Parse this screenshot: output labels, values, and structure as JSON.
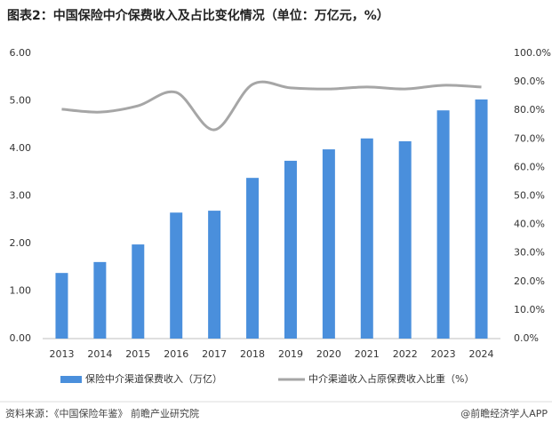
{
  "chart_data": {
    "type": "bar-line",
    "title": "图表2：中国保险中介保费收入及占比变化情况（单位：万亿元，%）",
    "categories": [
      "2013",
      "2014",
      "2015",
      "2016",
      "2017",
      "2018",
      "2019",
      "2020",
      "2021",
      "2022",
      "2023",
      "2024"
    ],
    "series": [
      {
        "name": "保险中介渠道保费收入（万亿）",
        "type": "bar",
        "color": "#4a8fdc",
        "values": [
          1.38,
          1.61,
          1.98,
          2.65,
          2.69,
          3.38,
          3.74,
          3.98,
          4.21,
          4.15,
          4.8,
          5.03
        ]
      },
      {
        "name": "中介渠道收入占原保费收入比重（%）",
        "type": "line",
        "axis": "y2",
        "color": "#a6a6a6",
        "values": [
          80.4,
          79.4,
          81.6,
          86.3,
          73.2,
          89.1,
          87.9,
          87.5,
          88.2,
          87.5,
          88.8,
          88.2
        ]
      }
    ],
    "ylim": [
      0,
      6
    ],
    "yticks": [
      {
        "value": 0,
        "label": "0.00"
      },
      {
        "value": 1,
        "label": "1.00"
      },
      {
        "value": 2,
        "label": "2.00"
      },
      {
        "value": 3,
        "label": "3.00"
      },
      {
        "value": 4,
        "label": "4.00"
      },
      {
        "value": 5,
        "label": "5.00"
      },
      {
        "value": 6,
        "label": "6.00"
      }
    ],
    "y2lim": [
      0,
      100
    ],
    "y2ticks": [
      {
        "value": 0,
        "label": "0.0%"
      },
      {
        "value": 10,
        "label": "10.0%"
      },
      {
        "value": 20,
        "label": "20.0%"
      },
      {
        "value": 30,
        "label": "30.0%"
      },
      {
        "value": 40,
        "label": "40.0%"
      },
      {
        "value": 50,
        "label": "50.0%"
      },
      {
        "value": 60,
        "label": "60.0%"
      },
      {
        "value": 70,
        "label": "70.0%"
      },
      {
        "value": 80,
        "label": "80.0%"
      },
      {
        "value": 90,
        "label": "90.0%"
      },
      {
        "value": 100,
        "label": "100.0%"
      }
    ],
    "grid": false,
    "legend": "bottom",
    "source": "资料来源：《中国保险年鉴》 前瞻产业研究院",
    "credit": "@前瞻经济学人APP"
  }
}
